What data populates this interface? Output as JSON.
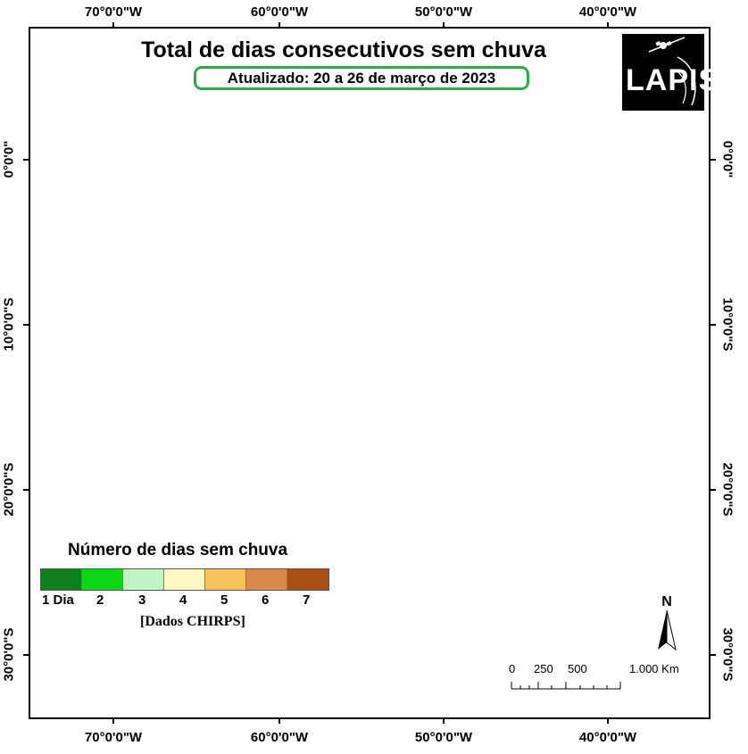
{
  "map": {
    "title": "Total de dias consecutivos sem chuva",
    "subtitle": "Atualizado: 20 a 26 de março de 2023",
    "logo_text": "LAPIS",
    "logo_icon": "satellite-icon",
    "top_longitudes": [
      "70°0'0\"W",
      "60°0'0\"W",
      "50°0'0\"W",
      "40°0'0\"W"
    ],
    "bottom_longitudes": [
      "70°0'0\"W",
      "60°0'0\"W",
      "50°0'0\"W",
      "40°0'0\"W"
    ],
    "left_latitudes": [
      "0°0'0\"",
      "10°0'0\"S",
      "20°0'0\"S",
      "30°0'0\"S"
    ],
    "right_latitudes": [
      "0°0'0\"",
      "10°0'0\"S",
      "20°0'0\"S",
      "30°0'0\"S"
    ]
  },
  "legend": {
    "title": "Número de dias sem chuva",
    "items": [
      {
        "label": "1 Dia",
        "color": "#0f7f1c"
      },
      {
        "label": "2",
        "color": "#0ad814"
      },
      {
        "label": "3",
        "color": "#bff5c2"
      },
      {
        "label": "4",
        "color": "#fff8c4"
      },
      {
        "label": "5",
        "color": "#f7c25a"
      },
      {
        "label": "6",
        "color": "#d98a4a"
      },
      {
        "label": "7",
        "color": "#a94f14"
      }
    ],
    "source": "[Dados CHIRPS]"
  },
  "north_arrow": {
    "label": "N"
  },
  "scale_bar": {
    "labels": [
      "0",
      "250",
      "500",
      "1.000 Km"
    ]
  }
}
